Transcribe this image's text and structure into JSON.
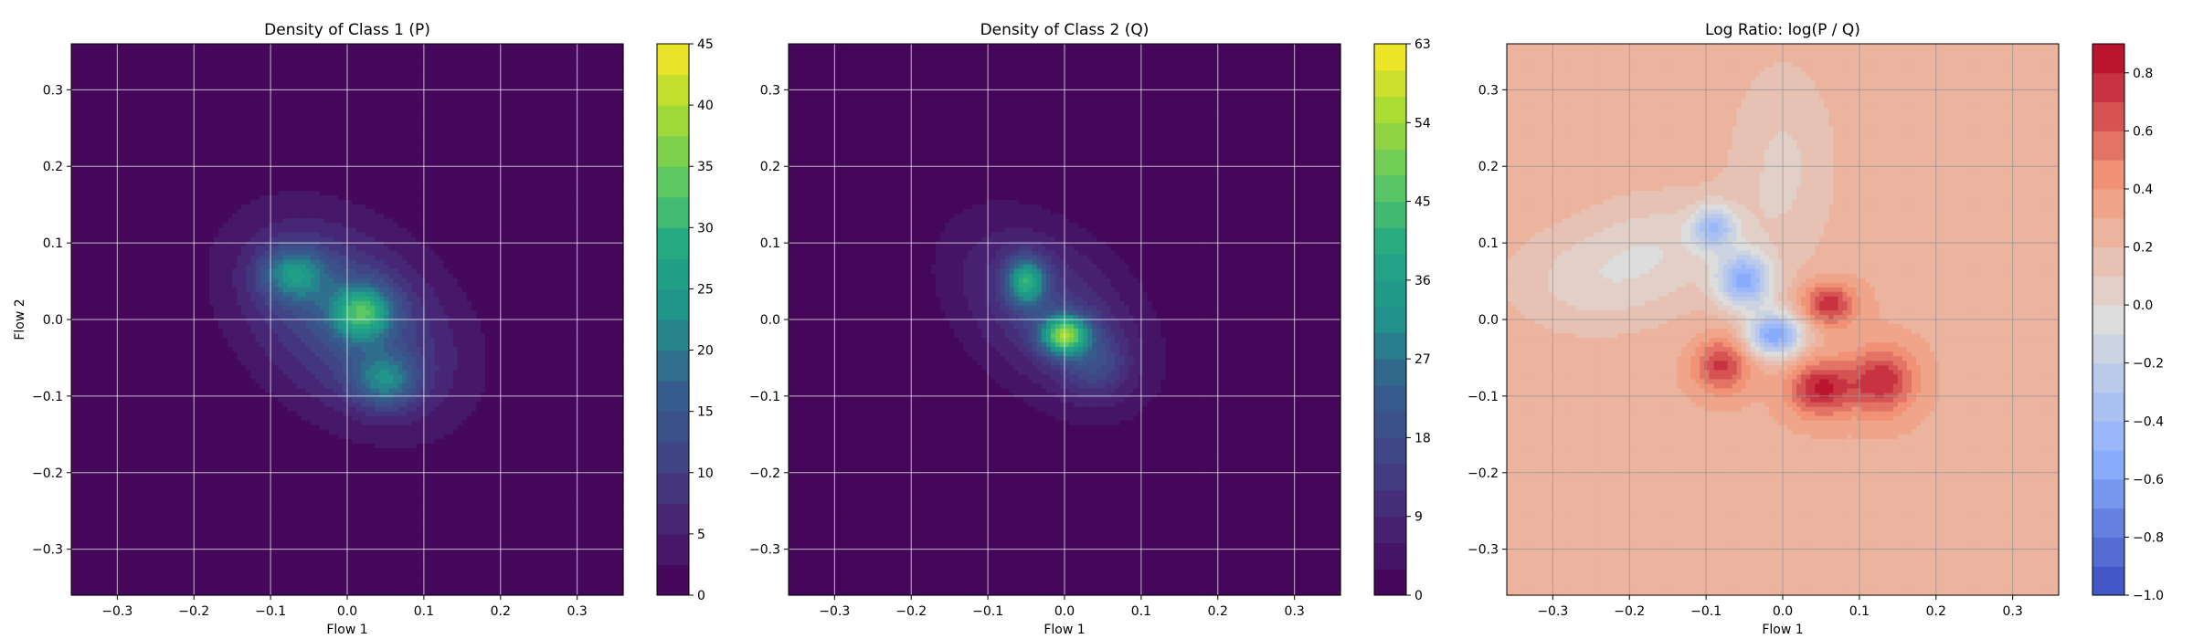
{
  "chart_data": [
    {
      "type": "heatmap",
      "title": "Density of Class 1 (P)",
      "xlabel": "Flow 1",
      "ylabel": "Flow 2",
      "xlim": [
        -0.36,
        0.36
      ],
      "ylim": [
        -0.36,
        0.36
      ],
      "x_ticks": [
        -0.3,
        -0.2,
        -0.1,
        0.0,
        0.1,
        0.2,
        0.3
      ],
      "y_ticks": [
        -0.3,
        -0.2,
        -0.1,
        0.0,
        0.1,
        0.2,
        0.3
      ],
      "x_tick_labels": [
        "−0.3",
        "−0.2",
        "−0.1",
        "0.0",
        "0.1",
        "0.2",
        "0.3"
      ],
      "y_tick_labels": [
        "−0.3",
        "−0.2",
        "−0.1",
        "0.0",
        "0.1",
        "0.2",
        "0.3"
      ],
      "grid": true,
      "colormap": "viridis",
      "colorbar": {
        "min": 0,
        "max": 45,
        "ticks": [
          0,
          5,
          10,
          15,
          20,
          25,
          30,
          35,
          40,
          45
        ],
        "tick_labels": [
          "0",
          "5",
          "10",
          "15",
          "20",
          "25",
          "30",
          "35",
          "40",
          "45"
        ],
        "levels": 18
      },
      "blobs": [
        {
          "x": 0.0,
          "y": 0.0,
          "sx": 0.11,
          "sy": 0.075,
          "angle": -38,
          "amp": 14
        },
        {
          "x": -0.07,
          "y": 0.06,
          "sx": 0.03,
          "sy": 0.025,
          "angle": 0,
          "amp": 16
        },
        {
          "x": 0.02,
          "y": 0.01,
          "sx": 0.028,
          "sy": 0.025,
          "angle": 0,
          "amp": 20
        },
        {
          "x": 0.05,
          "y": -0.08,
          "sx": 0.03,
          "sy": 0.025,
          "angle": 0,
          "amp": 14
        }
      ]
    },
    {
      "type": "heatmap",
      "title": "Density of Class 2 (Q)",
      "xlabel": "Flow 1",
      "ylabel": "",
      "xlim": [
        -0.36,
        0.36
      ],
      "ylim": [
        -0.36,
        0.36
      ],
      "x_ticks": [
        -0.3,
        -0.2,
        -0.1,
        0.0,
        0.1,
        0.2,
        0.3
      ],
      "y_ticks": [
        -0.3,
        -0.2,
        -0.1,
        0.0,
        0.1,
        0.2,
        0.3
      ],
      "x_tick_labels": [
        "−0.3",
        "−0.2",
        "−0.1",
        "0.0",
        "0.1",
        "0.2",
        "0.3"
      ],
      "y_tick_labels": [
        "−0.3",
        "−0.2",
        "−0.1",
        "0.0",
        "0.1",
        "0.2",
        "0.3"
      ],
      "grid": true,
      "colormap": "viridis",
      "colorbar": {
        "min": 0,
        "max": 63,
        "ticks": [
          0,
          9,
          18,
          27,
          36,
          45,
          54,
          63
        ],
        "tick_labels": [
          "0",
          "9",
          "18",
          "27",
          "36",
          "45",
          "54",
          "63"
        ],
        "levels": 21
      },
      "blobs": [
        {
          "x": -0.02,
          "y": 0.01,
          "sx": 0.1,
          "sy": 0.065,
          "angle": -42,
          "amp": 14
        },
        {
          "x": -0.05,
          "y": 0.05,
          "sx": 0.018,
          "sy": 0.022,
          "angle": 0,
          "amp": 30
        },
        {
          "x": 0.0,
          "y": -0.02,
          "sx": 0.022,
          "sy": 0.018,
          "angle": 0,
          "amp": 40
        },
        {
          "x": 0.04,
          "y": -0.06,
          "sx": 0.03,
          "sy": 0.03,
          "angle": 0,
          "amp": 10
        }
      ]
    },
    {
      "type": "heatmap",
      "title": "Log Ratio: log(P / Q)",
      "xlabel": "Flow 1",
      "ylabel": "",
      "xlim": [
        -0.36,
        0.36
      ],
      "ylim": [
        -0.36,
        0.36
      ],
      "x_ticks": [
        -0.3,
        -0.2,
        -0.1,
        0.0,
        0.1,
        0.2,
        0.3
      ],
      "y_ticks": [
        -0.3,
        -0.2,
        -0.1,
        0.0,
        0.1,
        0.2,
        0.3
      ],
      "x_tick_labels": [
        "−0.3",
        "−0.2",
        "−0.1",
        "0.0",
        "0.1",
        "0.2",
        "0.3"
      ],
      "y_tick_labels": [
        "−0.3",
        "−0.2",
        "−0.1",
        "0.0",
        "0.1",
        "0.2",
        "0.3"
      ],
      "grid": true,
      "colormap": "coolwarm",
      "colorbar": {
        "min": -1.0,
        "max": 0.9,
        "ticks": [
          -1.0,
          -0.8,
          -0.6,
          -0.4,
          -0.2,
          0.0,
          0.2,
          0.4,
          0.6,
          0.8
        ],
        "tick_labels": [
          "−1.0",
          "−0.8",
          "−0.6",
          "−0.4",
          "−0.2",
          "0.0",
          "0.2",
          "0.4",
          "0.6",
          "0.8"
        ],
        "levels": 19
      },
      "background": 0.28,
      "blobs": [
        {
          "x": -0.15,
          "y": 0.1,
          "sx": 0.07,
          "sy": 0.05,
          "angle": 0,
          "amp": -0.2
        },
        {
          "x": -0.09,
          "y": 0.12,
          "sx": 0.02,
          "sy": 0.02,
          "angle": 0,
          "amp": -0.55
        },
        {
          "x": -0.05,
          "y": 0.05,
          "sx": 0.025,
          "sy": 0.025,
          "angle": 0,
          "amp": -0.75
        },
        {
          "x": -0.01,
          "y": -0.02,
          "sx": 0.025,
          "sy": 0.02,
          "angle": 0,
          "amp": -0.85
        },
        {
          "x": 0.06,
          "y": 0.02,
          "sx": 0.025,
          "sy": 0.02,
          "angle": 0,
          "amp": 0.5
        },
        {
          "x": -0.08,
          "y": -0.06,
          "sx": 0.025,
          "sy": 0.025,
          "angle": 0,
          "amp": 0.45
        },
        {
          "x": 0.05,
          "y": -0.09,
          "sx": 0.03,
          "sy": 0.025,
          "angle": 0,
          "amp": 0.55
        },
        {
          "x": 0.13,
          "y": -0.08,
          "sx": 0.03,
          "sy": 0.03,
          "angle": 0,
          "amp": 0.5
        },
        {
          "x": 0.0,
          "y": 0.2,
          "sx": 0.05,
          "sy": 0.1,
          "angle": 0,
          "amp": -0.2
        },
        {
          "x": -0.25,
          "y": 0.05,
          "sx": 0.08,
          "sy": 0.05,
          "angle": 0,
          "amp": -0.22
        }
      ]
    }
  ]
}
